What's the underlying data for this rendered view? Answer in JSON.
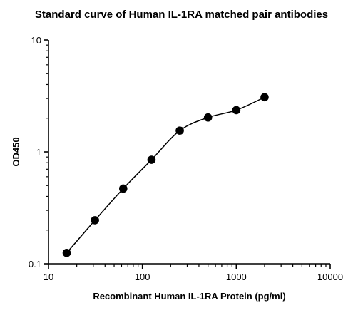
{
  "chart_data": {
    "type": "scatter",
    "title": "Standard curve of Human IL-1RA matched pair antibodies",
    "xlabel": "Recombinant Human IL-1RA Protein (pg/ml)",
    "ylabel": "OD450",
    "x_scale": "log",
    "y_scale": "log",
    "xlim": [
      10,
      10000
    ],
    "ylim": [
      0.1,
      10
    ],
    "x_ticks": [
      10,
      100,
      1000,
      10000
    ],
    "x_tick_labels": [
      "10",
      "100",
      "1000",
      "10000"
    ],
    "y_ticks": [
      0.1,
      1,
      10
    ],
    "y_tick_labels": [
      "0.1",
      "1",
      "10"
    ],
    "grid": false,
    "legend": "none",
    "series": [
      {
        "x": [
          15.625,
          31.25,
          62.5,
          125,
          250,
          500,
          1000,
          2000
        ],
        "y": [
          0.125,
          0.245,
          0.47,
          0.85,
          1.55,
          2.03,
          2.36,
          3.08
        ],
        "marker": "filled-circle",
        "fit_curve": true
      }
    ],
    "colors": {
      "points": "#000000",
      "curve": "#000000",
      "axes": "#000000"
    }
  }
}
